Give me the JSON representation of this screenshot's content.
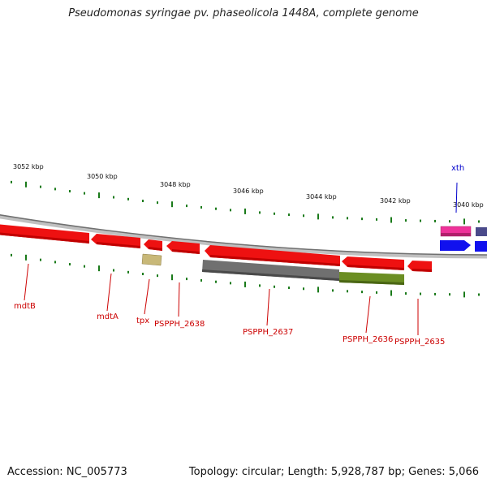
{
  "title": "Pseudomonas syringae pv. phaseolicola 1448A, complete genome",
  "footer": {
    "accession": "Accession: NC_005773",
    "summary": "Topology: circular; Length: 5,928,787 bp; Genes: 5,066"
  },
  "colors": {
    "backbone": "#8c8c8c",
    "scale_ticks": "#1a7a1a",
    "cds": "#ee1111",
    "gene_label": "#cc0000",
    "xth_label": "#0000cc",
    "grey_feature": "#707070",
    "olive_feature": "#6b8e23",
    "khaki_feature": "#c8b878",
    "magenta_feature": "#ee3399",
    "blue_feature": "#1111ee",
    "slate_feature": "#4a4a8a"
  },
  "scale_labels": [
    "3052 kbp",
    "3050 kbp",
    "3048 kbp",
    "3046 kbp",
    "3044 kbp",
    "3042 kbp",
    "3040 kbp"
  ],
  "gene_labels": [
    "mdtB",
    "mdtA",
    "tpx",
    "PSPPH_2638",
    "PSPPH_2637",
    "PSPPH_2636",
    "PSPPH_2635",
    "xth"
  ]
}
